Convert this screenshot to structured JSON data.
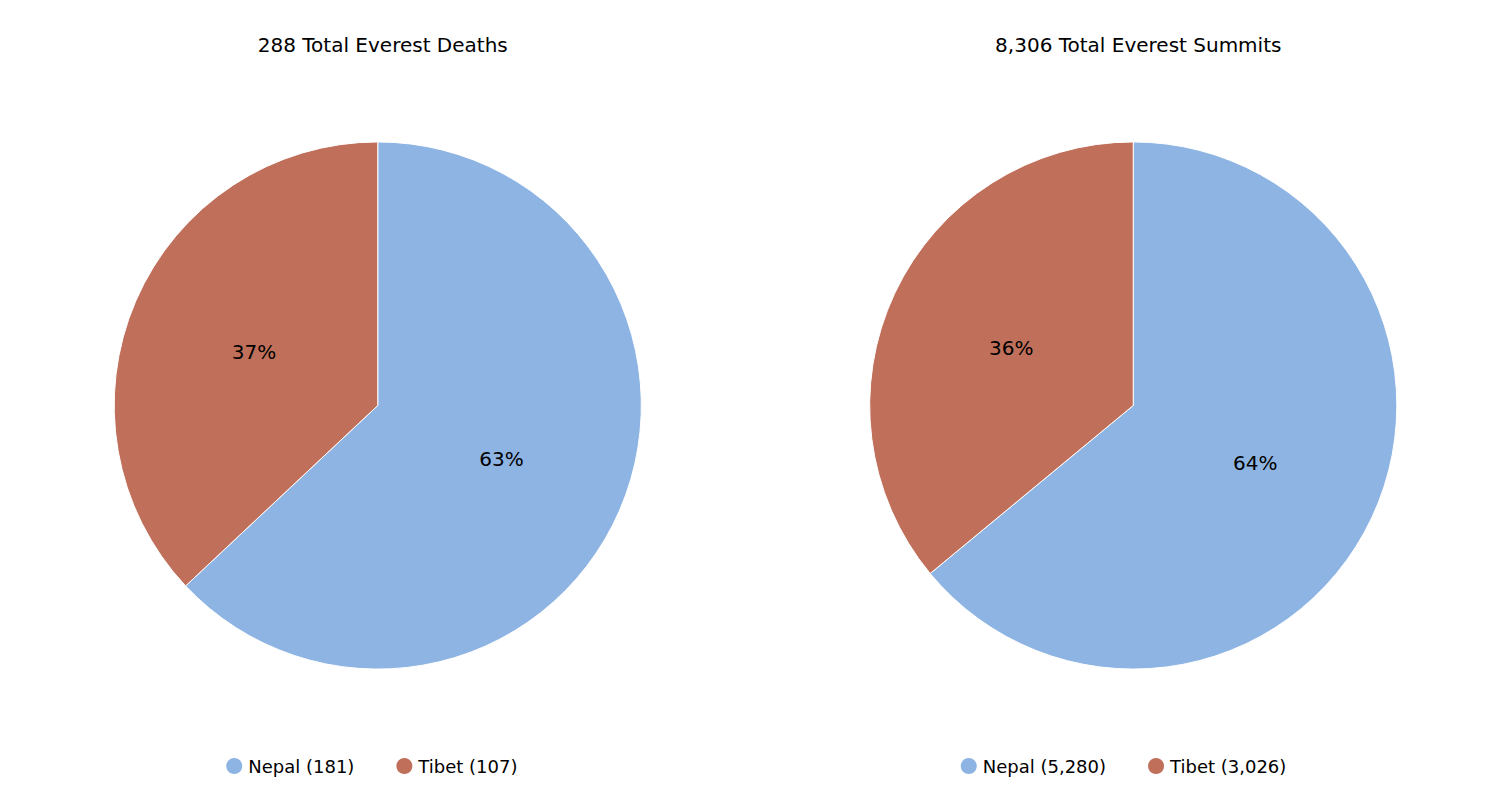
{
  "chart_data": [
    {
      "type": "pie",
      "title": "288 Total Everest Deaths",
      "categories": [
        "Nepal (181)",
        "Tibet (107)"
      ],
      "values": [
        63,
        37
      ],
      "value_labels": [
        "63%",
        "37%"
      ],
      "colors": [
        "#8EB4E3",
        "#C0705A"
      ],
      "data_labels": true,
      "legend": "bottom"
    },
    {
      "type": "pie",
      "title": "8,306 Total Everest Summits",
      "categories": [
        "Nepal (5,280)",
        "Tibet (3,026)"
      ],
      "values": [
        64,
        36
      ],
      "value_labels": [
        "64%",
        "36%"
      ],
      "colors": [
        "#8EB4E3",
        "#C0705A"
      ],
      "data_labels": true,
      "legend": "bottom"
    }
  ]
}
